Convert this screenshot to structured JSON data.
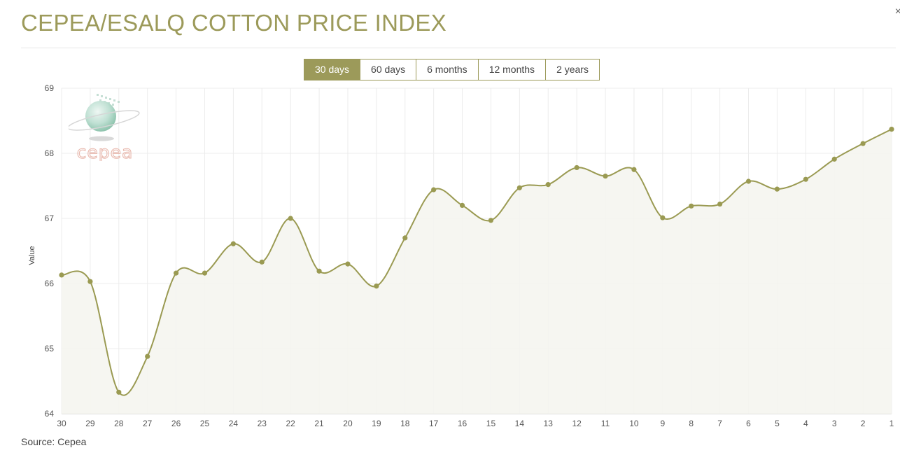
{
  "page": {
    "title": "CEPEA/ESALQ COTTON PRICE INDEX",
    "close": "×"
  },
  "tabs": [
    {
      "label": "30 days",
      "active": true
    },
    {
      "label": "60 days",
      "active": false
    },
    {
      "label": "6 months",
      "active": false
    },
    {
      "label": "12 months",
      "active": false
    },
    {
      "label": "2 years",
      "active": false
    }
  ],
  "logo": {
    "text": "cepea",
    "icon": "cepea-globe-logo"
  },
  "source": "Source: Cepea",
  "colors": {
    "accent": "#9c9a5a",
    "line": "#9a9a52",
    "fill": "#f5f5f0",
    "grid": "#ececec"
  },
  "chart_data": {
    "type": "area",
    "ylabel": "Value",
    "xlabel": "",
    "ylim": [
      64,
      69
    ],
    "yticks": [
      64,
      65,
      66,
      67,
      68,
      69
    ],
    "categories": [
      "30",
      "29",
      "28",
      "27",
      "26",
      "25",
      "24",
      "23",
      "22",
      "21",
      "20",
      "19",
      "18",
      "17",
      "16",
      "15",
      "14",
      "13",
      "12",
      "11",
      "10",
      "9",
      "8",
      "7",
      "6",
      "5",
      "4",
      "3",
      "2",
      "1"
    ],
    "series": [
      {
        "values": [
          66.13,
          66.03,
          64.33,
          64.88,
          66.16,
          66.16,
          66.61,
          66.33,
          67.0,
          66.19,
          66.3,
          65.96,
          66.7,
          67.44,
          67.2,
          66.97,
          67.47,
          67.52,
          67.78,
          67.65,
          67.75,
          67.01,
          67.19,
          67.22,
          67.57,
          67.45,
          67.6,
          67.91,
          68.15,
          68.37
        ]
      }
    ],
    "grid": true
  }
}
